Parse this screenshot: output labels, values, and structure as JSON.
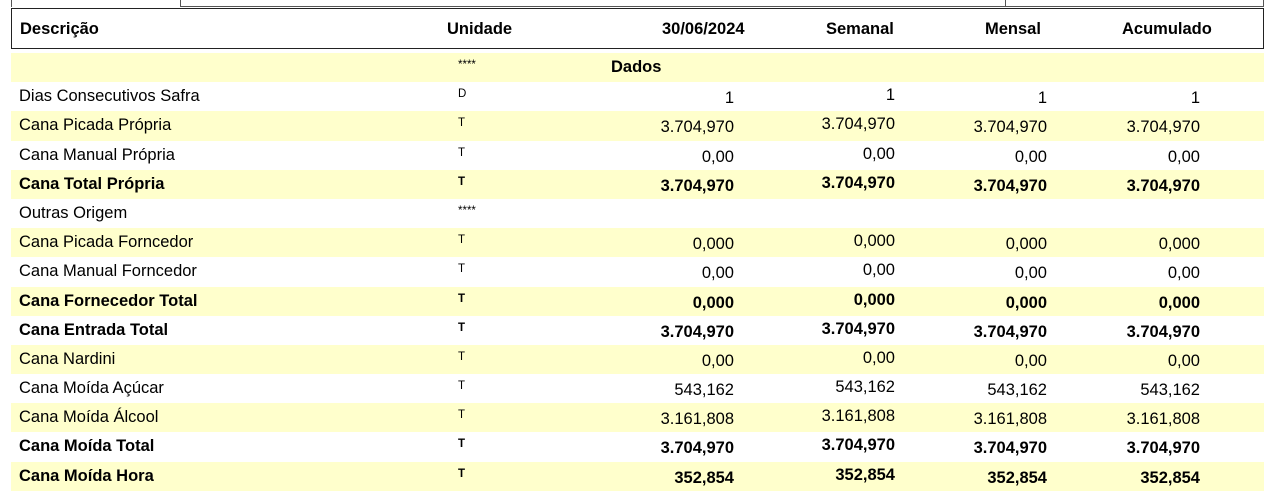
{
  "header": {
    "descricao": "Descrição",
    "unidade": "Unidade",
    "date": "30/06/2024",
    "semanal": "Semanal",
    "mensal": "Mensal",
    "acumulado": "Acumulado"
  },
  "section": {
    "marker": "****",
    "title": "Dados"
  },
  "rows": [
    {
      "desc": "Dias Consecutivos Safra",
      "unit": "D",
      "v1": "1",
      "v2": "1",
      "v3": "1",
      "v4": "1"
    },
    {
      "desc": "Cana Picada Própria",
      "unit": "T",
      "v1": "3.704,970",
      "v2": "3.704,970",
      "v3": "3.704,970",
      "v4": "3.704,970"
    },
    {
      "desc": "Cana Manual Própria",
      "unit": "T",
      "v1": "0,00",
      "v2": "0,00",
      "v3": "0,00",
      "v4": "0,00"
    },
    {
      "desc": "Cana Total Própria",
      "unit": "T",
      "v1": "3.704,970",
      "v2": "3.704,970",
      "v3": "3.704,970",
      "v4": "3.704,970"
    },
    {
      "desc": "Outras Origem",
      "unit": "****",
      "v1": "",
      "v2": "",
      "v3": "",
      "v4": ""
    },
    {
      "desc": "Cana Picada Forncedor",
      "unit": "T",
      "v1": "0,000",
      "v2": "0,000",
      "v3": "0,000",
      "v4": "0,000"
    },
    {
      "desc": "Cana Manual Forncedor",
      "unit": "T",
      "v1": "0,00",
      "v2": "0,00",
      "v3": "0,00",
      "v4": "0,00"
    },
    {
      "desc": "Cana Fornecedor Total",
      "unit": "T",
      "v1": "0,000",
      "v2": "0,000",
      "v3": "0,000",
      "v4": "0,000"
    },
    {
      "desc": "Cana Entrada Total",
      "unit": "T",
      "v1": "3.704,970",
      "v2": "3.704,970",
      "v3": "3.704,970",
      "v4": "3.704,970"
    },
    {
      "desc": "Cana Nardini",
      "unit": "T",
      "v1": "0,00",
      "v2": "0,00",
      "v3": "0,00",
      "v4": "0,00"
    },
    {
      "desc": "Cana Moída Açúcar",
      "unit": "T",
      "v1": "543,162",
      "v2": "543,162",
      "v3": "543,162",
      "v4": "543,162"
    },
    {
      "desc": "Cana Moída Álcool",
      "unit": "T",
      "v1": "3.161,808",
      "v2": "3.161,808",
      "v3": "3.161,808",
      "v4": "3.161,808"
    },
    {
      "desc": "Cana Moída Total",
      "unit": "T",
      "v1": "3.704,970",
      "v2": "3.704,970",
      "v3": "3.704,970",
      "v4": "3.704,970"
    },
    {
      "desc": "Cana Moída Hora",
      "unit": "T",
      "v1": "352,854",
      "v2": "352,854",
      "v3": "352,854",
      "v4": "352,854"
    }
  ]
}
